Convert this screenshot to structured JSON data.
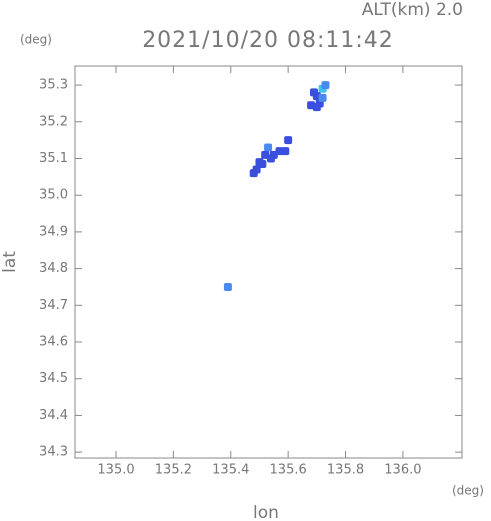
{
  "chart_data": {
    "type": "scatter",
    "title": "2021/10/20 08:11:42",
    "altitude_label": "ALT(km) 2.0",
    "x_label": "lon",
    "y_label": "lat",
    "x_unit": "(deg)",
    "y_unit": "(deg)",
    "x": [
      135.72,
      135.73,
      135.7,
      135.69,
      135.71,
      135.7,
      135.68,
      135.72,
      135.6,
      135.59,
      135.57,
      135.53,
      135.52,
      135.54,
      135.5,
      135.49,
      135.48,
      135.51,
      135.55,
      135.39
    ],
    "values": [
      35.29,
      35.3,
      35.27,
      35.28,
      35.25,
      35.24,
      35.245,
      35.265,
      35.15,
      35.12,
      35.12,
      35.13,
      35.11,
      35.1,
      35.09,
      35.07,
      35.06,
      35.085,
      35.11,
      34.75
    ],
    "point_colors": [
      "#3cc4f4",
      "#4a8af0",
      "#3a4ee0",
      "#3a4ee0",
      "#3a4ee0",
      "#3a4ee0",
      "#3a4ee0",
      "#4a8af0",
      "#3a4ee0",
      "#3a4ee0",
      "#3a4ee0",
      "#4a8af0",
      "#3a4ee0",
      "#3a4ee0",
      "#3a4ee0",
      "#3a4ee0",
      "#3a4ee0",
      "#3a4ee0",
      "#3a4ee0",
      "#4a8af0"
    ],
    "xlim": [
      134.857,
      136.206
    ],
    "ylim": [
      34.284,
      35.352
    ],
    "xticks": [
      {
        "value": 135.0,
        "label": "135.0"
      },
      135.2,
      135.4,
      135.6,
      135.8,
      {
        "value": 136.0,
        "label": "136.0"
      }
    ],
    "yticks": [
      34.3,
      34.4,
      34.5,
      34.6,
      34.7,
      34.8,
      34.9,
      {
        "value": 35.0,
        "label": "35.0"
      },
      35.1,
      35.2,
      35.3
    ]
  }
}
